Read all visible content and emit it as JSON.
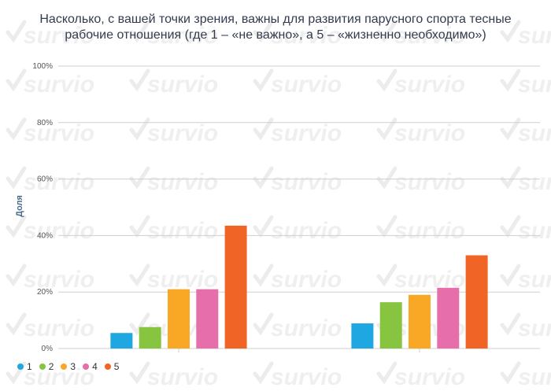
{
  "watermark": "survio",
  "chart_data": {
    "type": "bar",
    "title": "Насколько, с вашей точки зрения, важны для развития парусного спорта тесные рабочие отношения (где 1 – «не важно», а 5 – «жизненно необходимо»)",
    "ylabel": "Доля",
    "ylim": [
      0,
      100
    ],
    "yticks": [
      "0%",
      "20%",
      "40%",
      "60%",
      "80%",
      "100%"
    ],
    "categories": [
      "",
      ""
    ],
    "series": [
      {
        "name": "1",
        "color": "#1ea7e1",
        "values": [
          5.5,
          8.9
        ]
      },
      {
        "name": "2",
        "color": "#87c540",
        "values": [
          7.6,
          16.4
        ]
      },
      {
        "name": "3",
        "color": "#f9a826",
        "values": [
          21.0,
          19.0
        ]
      },
      {
        "name": "4",
        "color": "#e66fab",
        "values": [
          21.0,
          21.5
        ]
      },
      {
        "name": "5",
        "color": "#f06525",
        "values": [
          43.5,
          33.0
        ]
      }
    ],
    "grid": true,
    "legend": "bottom-left"
  }
}
